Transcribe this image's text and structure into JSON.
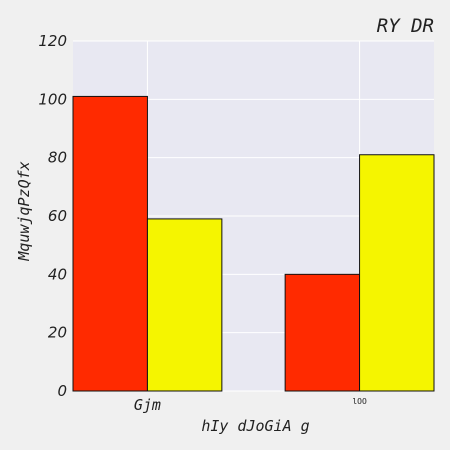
{
  "chart_data": {
    "type": "bar",
    "title": "RY DR",
    "xlabel": "hIy dJoGiA g",
    "ylabel": "MquwjqPzQfx",
    "categories": [
      "Gjm",
      "lOO"
    ],
    "series": [
      {
        "values": [
          101,
          40
        ],
        "color": "#ff2a00"
      },
      {
        "values": [
          59,
          81
        ],
        "color": "#f5f500"
      }
    ],
    "ylim": [
      0,
      120
    ],
    "yticks": [
      0,
      20,
      40,
      60,
      80,
      100,
      120
    ],
    "grid": true,
    "legend": "none",
    "plot_background": "#e8e8f2",
    "grid_color": "#ffffff"
  }
}
